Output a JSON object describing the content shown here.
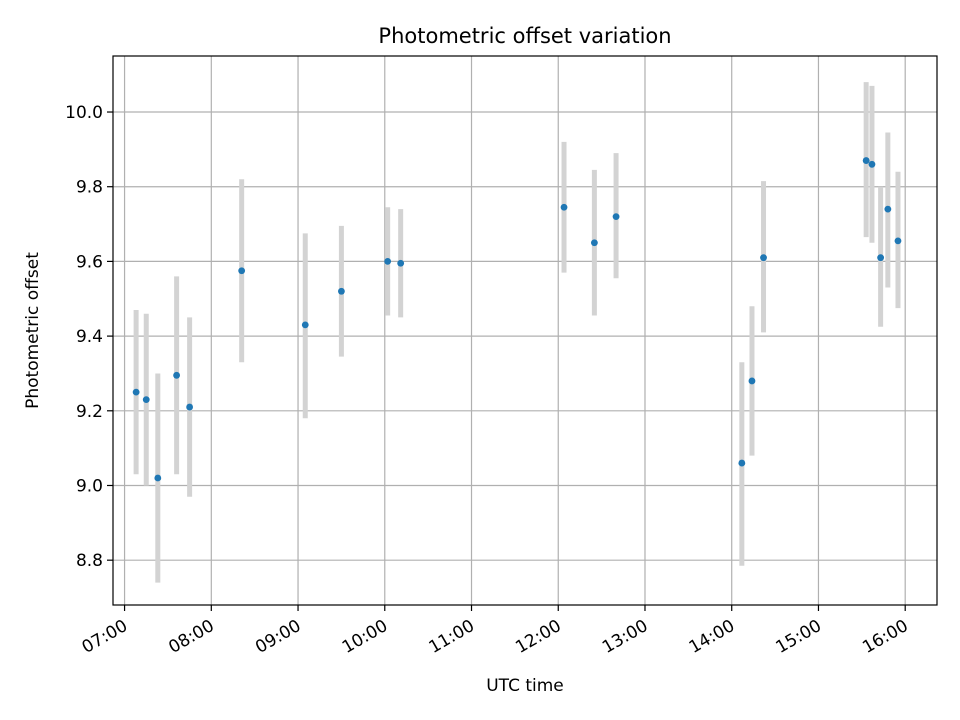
{
  "chart_data": {
    "type": "scatter",
    "title": "Photometric offset variation",
    "xlabel": "UTC time",
    "ylabel": "Photometric offset",
    "xlim": [
      "06:52",
      "16:22"
    ],
    "ylim": [
      8.68,
      10.15
    ],
    "grid": true,
    "x_ticks": [
      "07:00",
      "08:00",
      "09:00",
      "10:00",
      "11:00",
      "12:00",
      "13:00",
      "14:00",
      "15:00",
      "16:00"
    ],
    "y_ticks": [
      "8.8",
      "9.0",
      "9.2",
      "9.4",
      "9.6",
      "9.8",
      "10.0"
    ],
    "colors": {
      "point": "#1f77b4",
      "errorbar": "#d3d3d3",
      "grid": "#b0b0b0"
    },
    "points": [
      {
        "x": "07:08",
        "y": 9.25,
        "ylow": 9.03,
        "yhigh": 9.47
      },
      {
        "x": "07:15",
        "y": 9.23,
        "ylow": 9.0,
        "yhigh": 9.46
      },
      {
        "x": "07:23",
        "y": 9.02,
        "ylow": 8.74,
        "yhigh": 9.3
      },
      {
        "x": "07:36",
        "y": 9.295,
        "ylow": 9.03,
        "yhigh": 9.56
      },
      {
        "x": "07:45",
        "y": 9.21,
        "ylow": 8.97,
        "yhigh": 9.45
      },
      {
        "x": "08:21",
        "y": 9.575,
        "ylow": 9.33,
        "yhigh": 9.82
      },
      {
        "x": "09:05",
        "y": 9.43,
        "ylow": 9.18,
        "yhigh": 9.675
      },
      {
        "x": "09:30",
        "y": 9.52,
        "ylow": 9.345,
        "yhigh": 9.695
      },
      {
        "x": "10:02",
        "y": 9.6,
        "ylow": 9.455,
        "yhigh": 9.745
      },
      {
        "x": "10:11",
        "y": 9.595,
        "ylow": 9.45,
        "yhigh": 9.74
      },
      {
        "x": "12:04",
        "y": 9.745,
        "ylow": 9.57,
        "yhigh": 9.92
      },
      {
        "x": "12:25",
        "y": 9.65,
        "ylow": 9.455,
        "yhigh": 9.845
      },
      {
        "x": "12:40",
        "y": 9.72,
        "ylow": 9.555,
        "yhigh": 9.89
      },
      {
        "x": "14:07",
        "y": 9.06,
        "ylow": 8.785,
        "yhigh": 9.33
      },
      {
        "x": "14:14",
        "y": 9.28,
        "ylow": 9.08,
        "yhigh": 9.48
      },
      {
        "x": "14:22",
        "y": 9.61,
        "ylow": 9.41,
        "yhigh": 9.815
      },
      {
        "x": "15:33",
        "y": 9.87,
        "ylow": 9.665,
        "yhigh": 10.08
      },
      {
        "x": "15:37",
        "y": 9.86,
        "ylow": 9.65,
        "yhigh": 10.07
      },
      {
        "x": "15:43",
        "y": 9.61,
        "ylow": 9.425,
        "yhigh": 9.8
      },
      {
        "x": "15:48",
        "y": 9.74,
        "ylow": 9.53,
        "yhigh": 9.945
      },
      {
        "x": "15:55",
        "y": 9.655,
        "ylow": 9.475,
        "yhigh": 9.84
      }
    ]
  }
}
